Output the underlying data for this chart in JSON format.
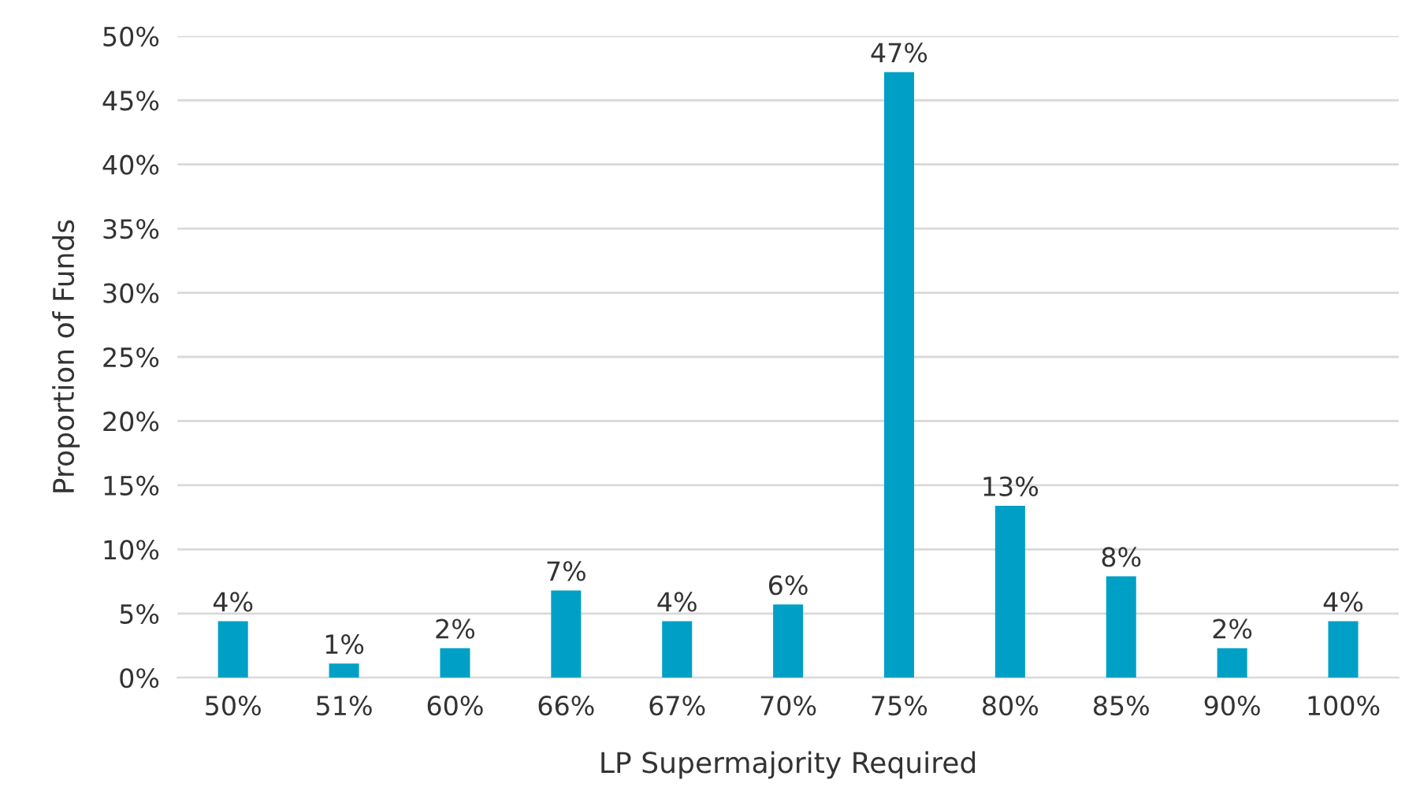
{
  "chart_data": {
    "type": "bar",
    "xlabel": "LP Supermajority Required",
    "ylabel": "Proportion of Funds",
    "categories": [
      "50%",
      "51%",
      "60%",
      "66%",
      "67%",
      "70%",
      "75%",
      "80%",
      "85%",
      "90%",
      "100%"
    ],
    "values": [
      4.4,
      1.1,
      2.3,
      6.8,
      4.4,
      5.7,
      47.2,
      13.4,
      7.9,
      2.3,
      4.4
    ],
    "value_labels": [
      "4%",
      "1%",
      "2%",
      "7%",
      "4%",
      "6%",
      "47%",
      "13%",
      "8%",
      "2%",
      "4%"
    ],
    "color": "#00a0c6",
    "ylim": [
      0,
      50
    ],
    "yticks": [
      {
        "value": 0,
        "label": "0%"
      },
      {
        "value": 5,
        "label": "5%"
      },
      {
        "value": 10,
        "label": "10%"
      },
      {
        "value": 15,
        "label": "15%"
      },
      {
        "value": 20,
        "label": "20%"
      },
      {
        "value": 25,
        "label": "25%"
      },
      {
        "value": 30,
        "label": "30%"
      },
      {
        "value": 35,
        "label": "35%"
      },
      {
        "value": 40,
        "label": "40%"
      },
      {
        "value": 45,
        "label": "45%"
      },
      {
        "value": 50,
        "label": "50%"
      }
    ],
    "grid": "y"
  }
}
